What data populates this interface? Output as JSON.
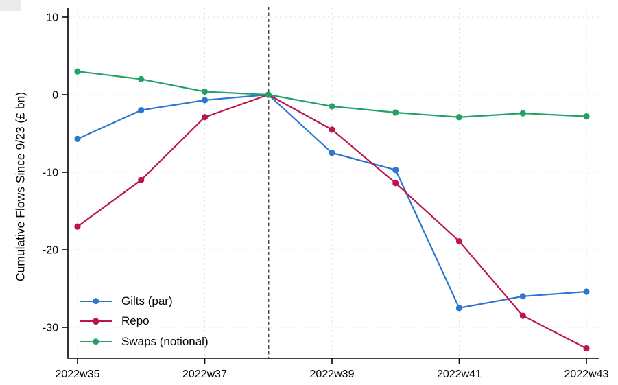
{
  "figure": {
    "background": "#ffffff",
    "axis_color": "#000000",
    "grid_color": "#e6e6e6"
  },
  "chart_data": {
    "type": "line",
    "title": "",
    "xlabel": "",
    "ylabel": "Cumulative Flows Since 9/23 (£ bn)",
    "categories": [
      "2022w35",
      "2022w36",
      "2022w37",
      "2022w38",
      "2022w39",
      "2022w40",
      "2022w41",
      "2022w42",
      "2022w43"
    ],
    "x_tick_labels": [
      "2022w35",
      "2022w37",
      "2022w39",
      "2022w41",
      "2022w43"
    ],
    "y_ticks": [
      10,
      0,
      -10,
      -20,
      -30
    ],
    "ylim": [
      -34,
      11
    ],
    "grid": "dashed-light-both-axes",
    "legend_position": "inside-bottom-left",
    "reference_line": {
      "type": "vertical-dashed",
      "x": "2022w38",
      "color": "#4d4d4d"
    },
    "series": [
      {
        "name": "Gilts (par)",
        "color": "#2a76d2",
        "values": [
          -5.7,
          -2.0,
          -0.7,
          0.0,
          -7.5,
          -9.7,
          -27.5,
          -26.0,
          -25.4
        ]
      },
      {
        "name": "Repo",
        "color": "#bd1550",
        "values": [
          -17.0,
          -11.0,
          -2.9,
          0.0,
          -4.5,
          -11.4,
          -18.9,
          -28.5,
          -32.7
        ]
      },
      {
        "name": "Swaps (notional)",
        "color": "#23a266",
        "values": [
          3.0,
          2.0,
          0.4,
          0.0,
          -1.5,
          -2.3,
          -2.9,
          -2.4,
          -2.8
        ]
      }
    ]
  }
}
